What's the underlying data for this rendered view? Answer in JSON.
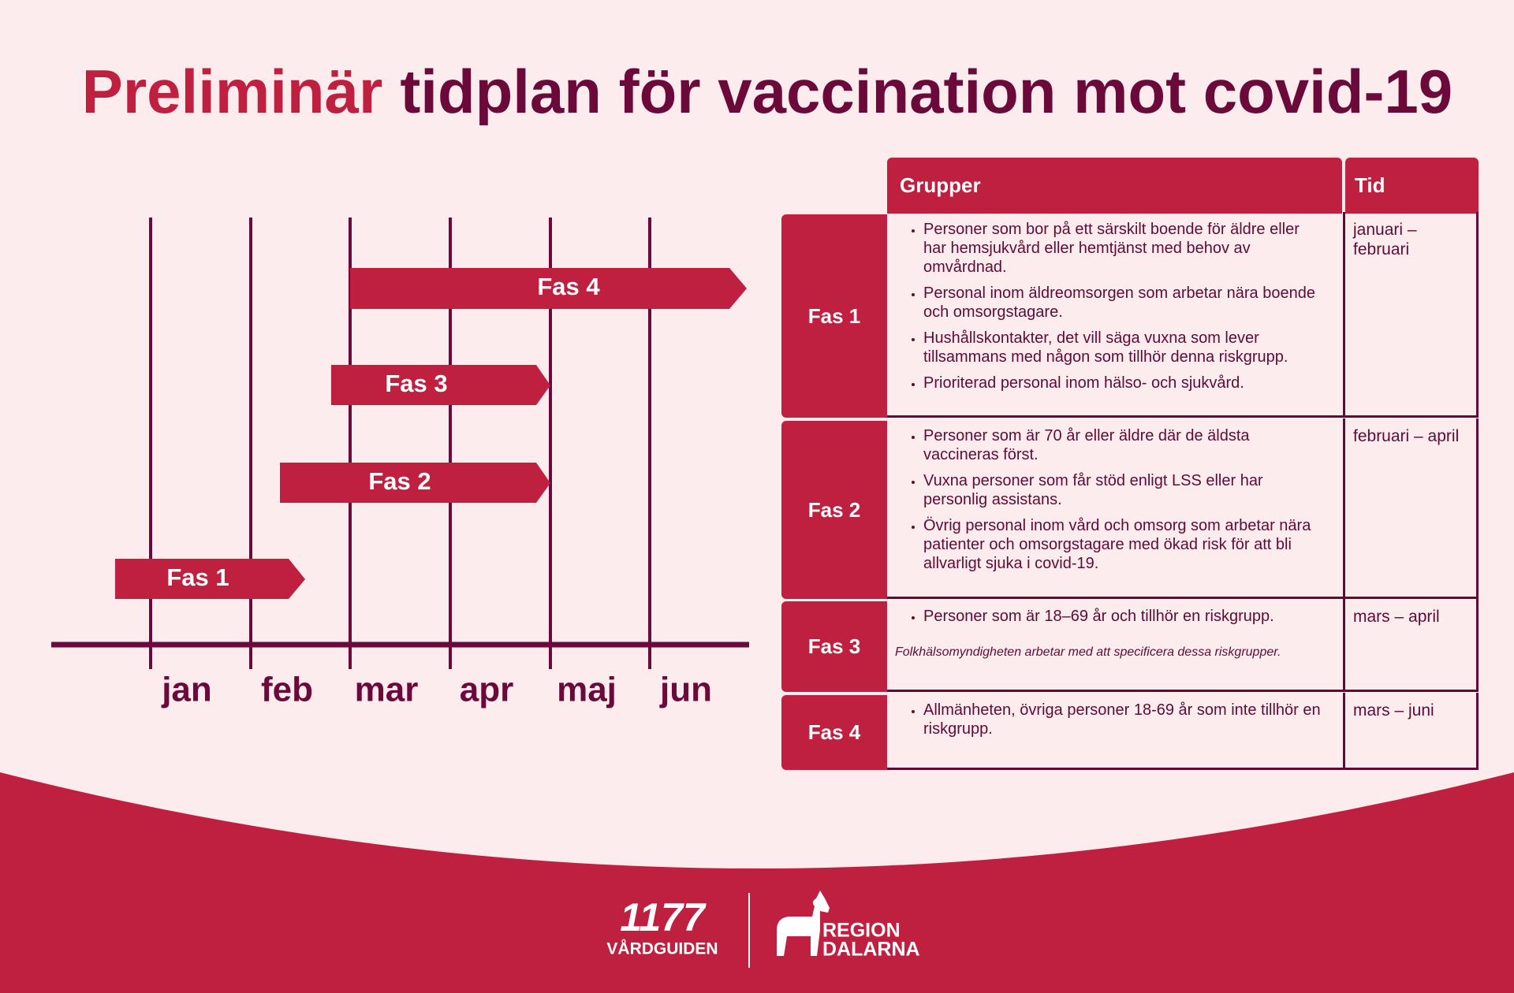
{
  "title": {
    "highlight": "Preliminär",
    "rest": "tidplan för vaccination mot covid-19"
  },
  "timeline": {
    "months": [
      "jan",
      "feb",
      "mar",
      "apr",
      "maj",
      "jun"
    ],
    "bars": [
      "Fas 4",
      "Fas 3",
      "Fas 2",
      "Fas 1"
    ]
  },
  "table": {
    "headers": [
      "Grupper",
      "Tid"
    ],
    "rows": [
      {
        "phase": "Fas 1",
        "groups": [
          "Personer som bor på ett särskilt boende för äldre eller har hemsjukvård eller hemtjänst med behov av omvårdnad.",
          "Personal inom äldreomsorgen som arbetar nära boende och omsorgstagare.",
          "Hushållskontakter, det vill säga vuxna som lever tillsammans med någon som tillhör denna riskgrupp.",
          "Prioriterad personal inom hälso- och sjukvård."
        ],
        "time": "januari – februari"
      },
      {
        "phase": "Fas 2",
        "groups": [
          "Personer som är 70 år eller äldre där de äldsta vaccineras först.",
          "Vuxna personer som får stöd enligt LSS eller har personlig assistans.",
          "Övrig personal inom vård och omsorg som arbetar nära patienter och omsorgstagare med ökad risk för att bli allvarligt sjuka i covid-19."
        ],
        "time": "februari – april"
      },
      {
        "phase": "Fas 3",
        "groups": [
          "Personer som är 18–69 år och tillhör en riskgrupp."
        ],
        "note": "Folkhälsomyndigheten arbetar med att specificera dessa riskgrupper.",
        "time": "mars – april"
      },
      {
        "phase": "Fas 4",
        "groups": [
          "Allmänheten, övriga personer 18-69 år som inte tillhör en riskgrupp."
        ],
        "time": "mars – juni"
      }
    ]
  },
  "footer": {
    "logo1": {
      "number": "1177",
      "name": "VÅRDGUIDEN"
    },
    "logo2": {
      "line1": "REGION",
      "line2": "DALARNA"
    }
  }
}
